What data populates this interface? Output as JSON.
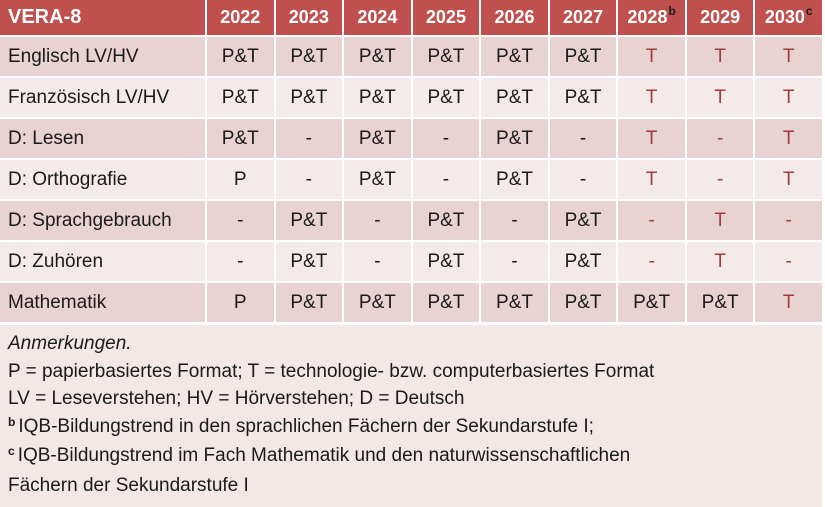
{
  "table": {
    "title": "VERA-8",
    "columns": [
      {
        "label": "2022",
        "sup": ""
      },
      {
        "label": "2023",
        "sup": ""
      },
      {
        "label": "2024",
        "sup": ""
      },
      {
        "label": "2025",
        "sup": ""
      },
      {
        "label": "2026",
        "sup": ""
      },
      {
        "label": "2027",
        "sup": ""
      },
      {
        "label": "2028",
        "sup": "b"
      },
      {
        "label": "2029",
        "sup": ""
      },
      {
        "label": "2030",
        "sup": "c"
      }
    ],
    "rows": [
      {
        "label": "Englisch LV/HV",
        "values": [
          "P&T",
          "P&T",
          "P&T",
          "P&T",
          "P&T",
          "P&T",
          "T",
          "T",
          "T"
        ],
        "red": [
          false,
          false,
          false,
          false,
          false,
          false,
          true,
          true,
          true
        ]
      },
      {
        "label": "Französisch LV/HV",
        "values": [
          "P&T",
          "P&T",
          "P&T",
          "P&T",
          "P&T",
          "P&T",
          "T",
          "T",
          "T"
        ],
        "red": [
          false,
          false,
          false,
          false,
          false,
          false,
          true,
          true,
          true
        ]
      },
      {
        "label": "D: Lesen",
        "values": [
          "P&T",
          "-",
          "P&T",
          "-",
          "P&T",
          "-",
          "T",
          "-",
          "T"
        ],
        "red": [
          false,
          false,
          false,
          false,
          false,
          false,
          true,
          true,
          true
        ]
      },
      {
        "label": "D: Orthografie",
        "values": [
          "P",
          "-",
          "P&T",
          "-",
          "P&T",
          "-",
          "T",
          "-",
          "T"
        ],
        "red": [
          false,
          false,
          false,
          false,
          false,
          false,
          true,
          true,
          true
        ]
      },
      {
        "label": "D: Sprachgebrauch",
        "values": [
          "-",
          "P&T",
          "-",
          "P&T",
          "-",
          "P&T",
          "-",
          "T",
          "-"
        ],
        "red": [
          false,
          false,
          false,
          false,
          false,
          false,
          true,
          true,
          true
        ]
      },
      {
        "label": "D: Zuhören",
        "values": [
          "-",
          "P&T",
          "-",
          "P&T",
          "-",
          "P&T",
          "-",
          "T",
          "-"
        ],
        "red": [
          false,
          false,
          false,
          false,
          false,
          false,
          true,
          true,
          true
        ]
      },
      {
        "label": "Mathematik",
        "values": [
          "P",
          "P&T",
          "P&T",
          "P&T",
          "P&T",
          "P&T",
          "P&T",
          "P&T",
          "T"
        ],
        "red": [
          false,
          false,
          false,
          false,
          false,
          false,
          false,
          false,
          true
        ]
      }
    ]
  },
  "notes": {
    "heading": "Anmerkungen.",
    "lines": [
      {
        "sup": "",
        "text": "P = papierbasiertes Format; T = technologie- bzw. computerbasiertes Format"
      },
      {
        "sup": "",
        "text": "LV = Leseverstehen; HV = Hörverstehen; D = Deutsch"
      },
      {
        "sup": "b",
        "text": "IQB-Bildungstrend in den sprachlichen Fächern der Sekundarstufe I;"
      },
      {
        "sup": "c",
        "text": "IQB-Bildungstrend im Fach Mathematik und den naturwissenschaftlichen"
      },
      {
        "sup": "",
        "text": "Fächern der Sekundarstufe I"
      }
    ]
  },
  "colors": {
    "header_bg": "#c0504d",
    "header_text": "#ffffff",
    "row_dark": "#e8d2d2",
    "row_light": "#f4eae9",
    "notes_bg": "#f3e8e6",
    "accent_text": "#a13e3c",
    "body_text": "#1a1a1a"
  }
}
